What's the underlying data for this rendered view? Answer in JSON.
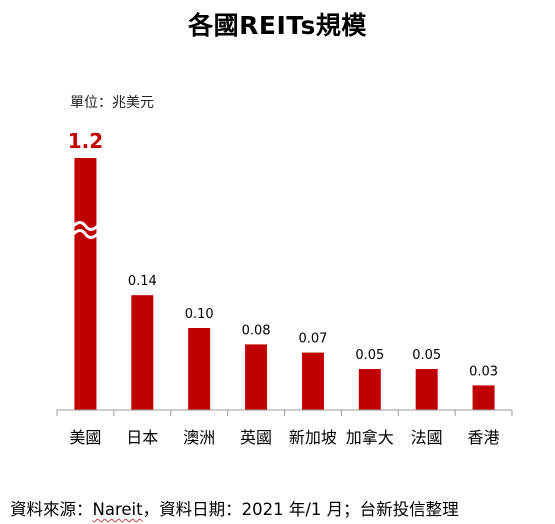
{
  "title": "各國REITs規模",
  "unit_label": "單位：兆美元",
  "footer": {
    "prefix": "資料來源：",
    "source": "Nareit",
    "suffix": "，資料日期：2021 年/1 月；台新投信整理"
  },
  "colors": {
    "bar": "#c00000",
    "top_label": "#c00000",
    "axis": "#9a9a9a"
  },
  "chart_data": {
    "type": "bar",
    "title": "各國REITs規模",
    "ylabel": "單位：兆美元",
    "axis_break": true,
    "grid": false,
    "categories": [
      "美國",
      "日本",
      "澳洲",
      "英國",
      "新加坡",
      "加拿大",
      "法國",
      "香港"
    ],
    "values": [
      1.2,
      0.14,
      0.1,
      0.08,
      0.07,
      0.05,
      0.05,
      0.03
    ],
    "labels": [
      "1.2",
      "0.14",
      "0.10",
      "0.08",
      "0.07",
      "0.05",
      "0.05",
      "0.03"
    ]
  }
}
